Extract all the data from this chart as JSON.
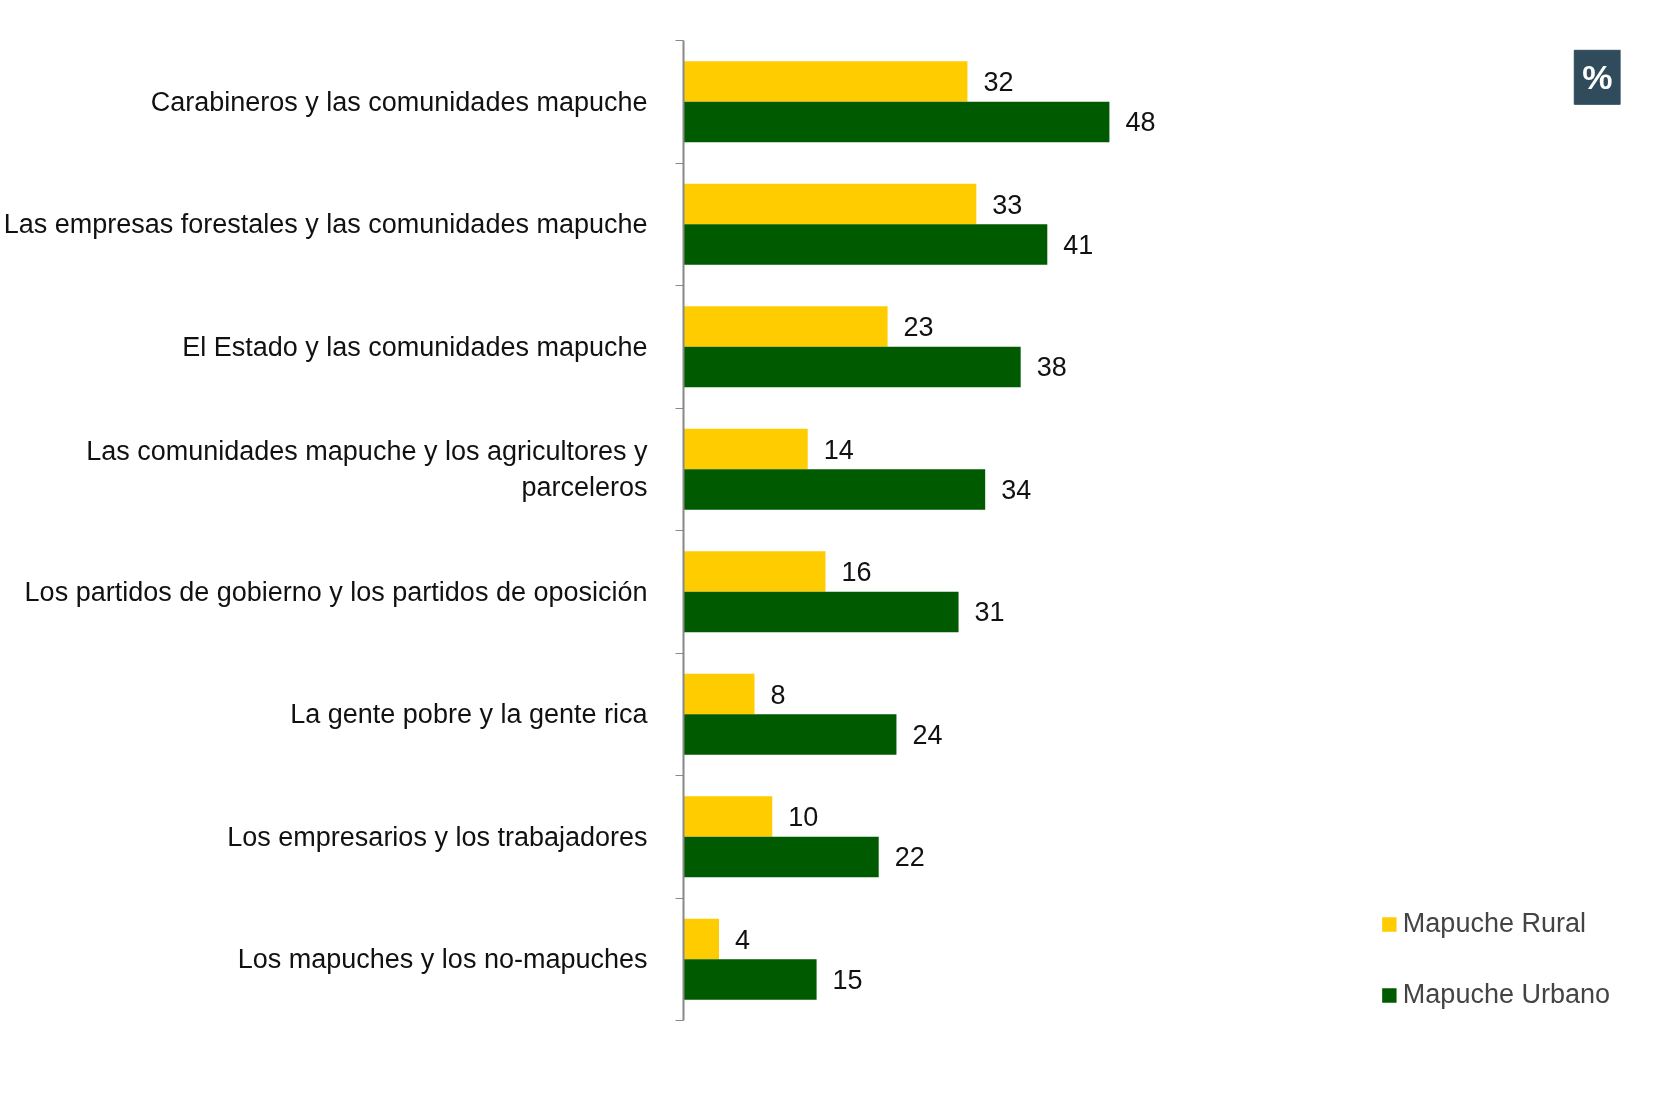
{
  "chart_data": {
    "type": "bar",
    "orientation": "horizontal",
    "categories": [
      "Carabineros y las comunidades mapuche",
      "Las empresas forestales y las comunidades mapuche",
      "El Estado y las comunidades mapuche",
      "Las comunidades mapuche y los agricultores y parceleros",
      "Los partidos de gobierno y los partidos de oposición",
      "La gente pobre y la gente rica",
      "Los empresarios y los trabajadores",
      "Los mapuches y los no-mapuches"
    ],
    "series": [
      {
        "name": "Mapuche Rural",
        "color": "#ffcc00",
        "values": [
          32,
          33,
          23,
          14,
          16,
          8,
          10,
          4
        ]
      },
      {
        "name": "Mapuche Urbano",
        "color": "#005a00",
        "values": [
          48,
          41,
          38,
          34,
          31,
          24,
          22,
          15
        ]
      }
    ],
    "data_labels": true,
    "legend": "bottom right",
    "grid": false,
    "tick_labels": "y",
    "annotations": [
      "%"
    ]
  }
}
